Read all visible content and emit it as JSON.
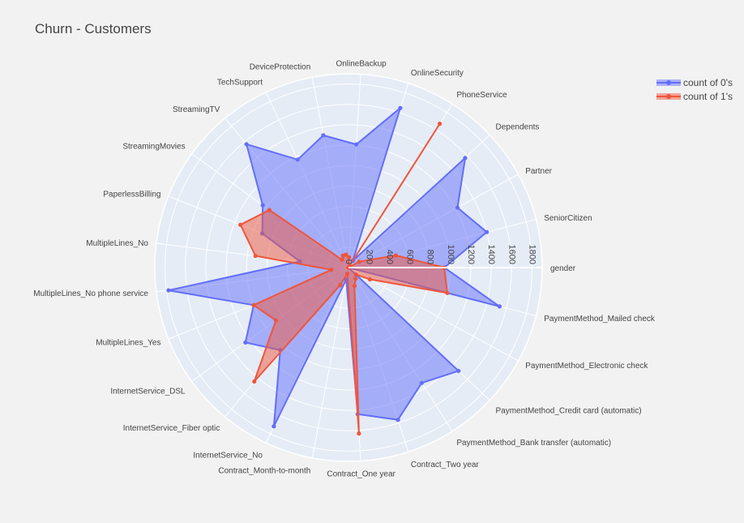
{
  "chart_data": {
    "type": "radar",
    "title": "Churn -  Customers",
    "categories": [
      "gender",
      "SeniorCitizen",
      "Partner",
      "Dependents",
      "PhoneService",
      "OnlineSecurity",
      "OnlineBackup",
      "DeviceProtection",
      "TechSupport",
      "StreamingTV",
      "StreamingMovies",
      "PaperlessBilling",
      "MultipleLines_No",
      "MultipleLines_No phone service",
      "MultipleLines_Yes",
      "InternetService_DSL",
      "InternetService_Fiber optic",
      "InternetService_No",
      "Contract_Month-to-month",
      "Contract_One year",
      "Contract_Two year",
      "PaymentMethod_Bank transfer (automatic)",
      "PaymentMethod_Credit card (automatic)",
      "PaymentMethod_Electronic check",
      "PaymentMethod_Mailed check"
    ],
    "series": [
      {
        "name": "count of 0's",
        "color": "#636efa",
        "values": [
          940,
          1400,
          1220,
          1570,
          80,
          1645,
          1210,
          1320,
          1170,
          1570,
          1040,
          910,
          480,
          1780,
          1000,
          1250,
          1050,
          1720,
          120,
          1440,
          1570,
          1340,
          1480,
          0,
          1530
        ]
      },
      {
        "name": "count of 1's",
        "color": "#ef553b",
        "values": [
          940,
          480,
          120,
          0,
          1670,
          0,
          100,
          130,
          130,
          100,
          960,
          1140,
          920,
          170,
          1000,
          880,
          1450,
          190,
          60,
          1630,
          190,
          130,
          100,
          240,
          1000
        ]
      }
    ],
    "radial_ticks": [
      0,
      200,
      400,
      600,
      800,
      1000,
      1200,
      1400,
      1600,
      1800
    ],
    "radial_range": [
      0,
      1900
    ],
    "legend_position": "top-right",
    "grid": true
  }
}
